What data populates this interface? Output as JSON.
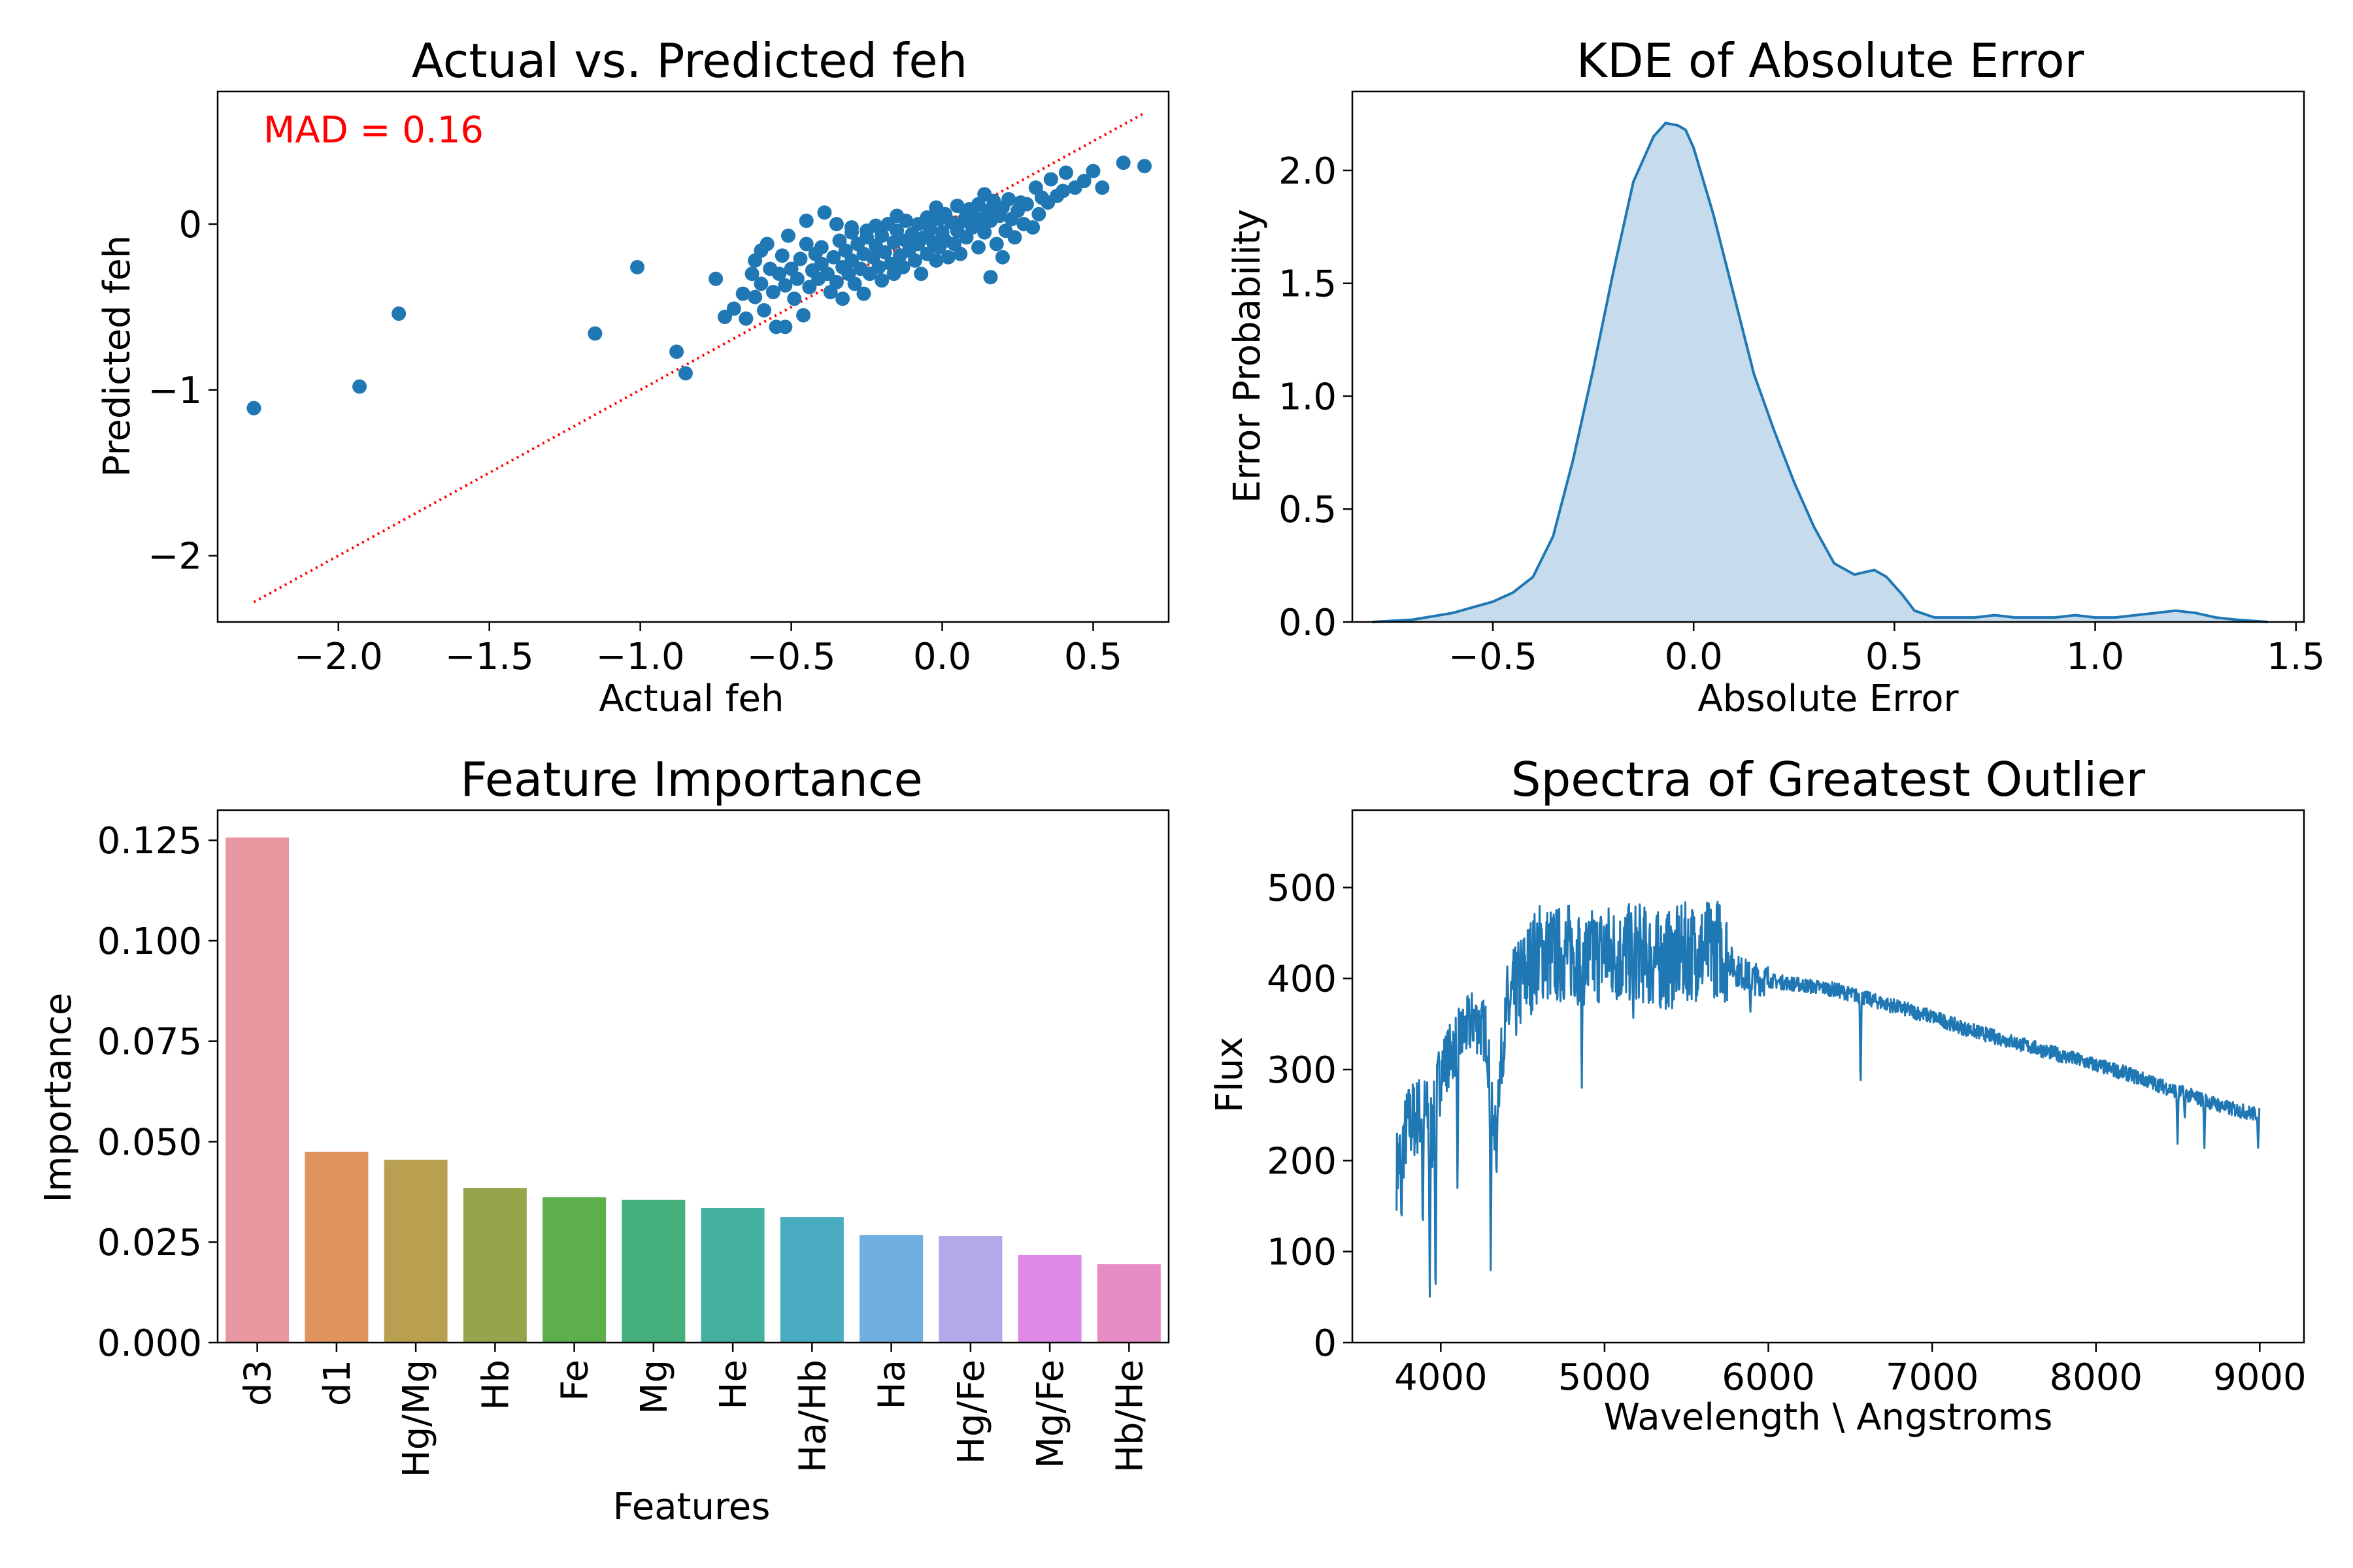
{
  "figure": {
    "panels": [
      {
        "id": "scatter",
        "title": "Actual vs. Predicted feh",
        "xlabel": "Actual feh",
        "ylabel": "Predicted feh",
        "annotation": {
          "text": "MAD = 0.16",
          "color": "#ff0000"
        }
      },
      {
        "id": "kde",
        "title": "KDE of Absolute Error",
        "xlabel": "Absolute Error",
        "ylabel": "Error Probability"
      },
      {
        "id": "bars",
        "title": "Feature Importance",
        "xlabel": "Features",
        "ylabel": "Importance"
      },
      {
        "id": "spectrum",
        "title": "Spectra of Greatest Outlier",
        "xlabel": "Wavelength \\ Angstroms",
        "ylabel": "Flux"
      }
    ]
  },
  "chart_data": [
    {
      "type": "scatter",
      "title": "Actual vs. Predicted feh",
      "xlabel": "Actual feh",
      "ylabel": "Predicted feh",
      "xlim": [
        -2.4,
        0.75
      ],
      "ylim": [
        -2.4,
        0.8
      ],
      "xticks": [
        -2.0,
        -1.5,
        -1.0,
        -0.5,
        0.0,
        0.5
      ],
      "xtick_labels": [
        "−2.0",
        "−1.5",
        "−1.0",
        "−0.5",
        "0.0",
        "0.5"
      ],
      "yticks": [
        -2,
        -1,
        0
      ],
      "ytick_labels": [
        "−2",
        "−1",
        "0"
      ],
      "point_color": "#1f77b4",
      "reference_line": {
        "x": [
          -2.28,
          0.67
        ],
        "y": [
          -2.28,
          0.67
        ],
        "color": "#ff0000",
        "style": "dotted"
      },
      "points": [
        [
          -2.28,
          -1.11
        ],
        [
          -1.93,
          -0.98
        ],
        [
          -1.8,
          -0.54
        ],
        [
          -1.15,
          -0.66
        ],
        [
          -1.01,
          -0.26
        ],
        [
          -0.88,
          -0.77
        ],
        [
          -0.85,
          -0.9
        ],
        [
          -0.75,
          -0.33
        ],
        [
          -0.72,
          -0.56
        ],
        [
          -0.69,
          -0.51
        ],
        [
          -0.66,
          -0.42
        ],
        [
          -0.65,
          -0.57
        ],
        [
          -0.63,
          -0.3
        ],
        [
          -0.62,
          -0.44
        ],
        [
          -0.6,
          -0.16
        ],
        [
          -0.6,
          -0.36
        ],
        [
          -0.59,
          -0.52
        ],
        [
          -0.58,
          -0.12
        ],
        [
          -0.57,
          -0.27
        ],
        [
          -0.56,
          -0.41
        ],
        [
          -0.55,
          -0.62
        ],
        [
          -0.54,
          -0.3
        ],
        [
          -0.53,
          -0.19
        ],
        [
          -0.52,
          -0.37
        ],
        [
          -0.52,
          -0.62
        ],
        [
          -0.51,
          -0.07
        ],
        [
          -0.5,
          -0.27
        ],
        [
          -0.49,
          -0.45
        ],
        [
          -0.48,
          -0.33
        ],
        [
          -0.47,
          -0.21
        ],
        [
          -0.46,
          -0.55
        ],
        [
          -0.45,
          -0.12
        ],
        [
          -0.44,
          -0.38
        ],
        [
          -0.43,
          -0.28
        ],
        [
          -0.42,
          -0.18
        ],
        [
          -0.41,
          -0.33
        ],
        [
          -0.4,
          -0.24
        ],
        [
          -0.4,
          -0.14
        ],
        [
          -0.39,
          0.07
        ],
        [
          -0.38,
          -0.3
        ],
        [
          -0.37,
          -0.41
        ],
        [
          -0.36,
          -0.2
        ],
        [
          -0.35,
          -0.35
        ],
        [
          -0.34,
          -0.1
        ],
        [
          -0.33,
          -0.26
        ],
        [
          -0.33,
          -0.45
        ],
        [
          -0.32,
          -0.16
        ],
        [
          -0.31,
          -0.3
        ],
        [
          -0.3,
          -0.05
        ],
        [
          -0.3,
          -0.22
        ],
        [
          -0.29,
          -0.36
        ],
        [
          -0.28,
          -0.12
        ],
        [
          -0.27,
          -0.27
        ],
        [
          -0.26,
          -0.18
        ],
        [
          -0.26,
          -0.42
        ],
        [
          -0.25,
          -0.08
        ],
        [
          -0.24,
          -0.3
        ],
        [
          -0.23,
          -0.2
        ],
        [
          -0.22,
          -0.01
        ],
        [
          -0.22,
          -0.13
        ],
        [
          -0.21,
          -0.26
        ],
        [
          -0.2,
          -0.34
        ],
        [
          -0.2,
          -0.07
        ],
        [
          -0.19,
          -0.17
        ],
        [
          -0.18,
          0.0
        ],
        [
          -0.17,
          -0.24
        ],
        [
          -0.16,
          -0.11
        ],
        [
          -0.16,
          -0.3
        ],
        [
          -0.15,
          -0.04
        ],
        [
          -0.14,
          -0.19
        ],
        [
          -0.13,
          -0.26
        ],
        [
          -0.12,
          0.02
        ],
        [
          -0.12,
          -0.1
        ],
        [
          -0.11,
          -0.16
        ],
        [
          -0.1,
          -0.06
        ],
        [
          -0.09,
          -0.22
        ],
        [
          -0.08,
          0.0
        ],
        [
          -0.08,
          -0.12
        ],
        [
          -0.07,
          -0.3
        ],
        [
          -0.06,
          -0.08
        ],
        [
          -0.05,
          0.04
        ],
        [
          -0.05,
          -0.18
        ],
        [
          -0.04,
          -0.03
        ],
        [
          -0.03,
          -0.11
        ],
        [
          -0.02,
          -0.22
        ],
        [
          -0.01,
          0.03
        ],
        [
          -0.01,
          -0.14
        ],
        [
          0.0,
          -0.05
        ],
        [
          0.01,
          0.06
        ],
        [
          0.01,
          -0.1
        ],
        [
          0.02,
          -0.2
        ],
        [
          0.03,
          0.01
        ],
        [
          0.04,
          -0.12
        ],
        [
          0.05,
          -0.04
        ],
        [
          0.05,
          0.11
        ],
        [
          0.06,
          -0.18
        ],
        [
          0.07,
          0.02
        ],
        [
          0.08,
          -0.08
        ],
        [
          0.09,
          0.09
        ],
        [
          0.1,
          -0.02
        ],
        [
          0.11,
          0.04
        ],
        [
          0.12,
          -0.14
        ],
        [
          0.12,
          0.12
        ],
        [
          0.13,
          0.01
        ],
        [
          0.14,
          -0.05
        ],
        [
          0.15,
          0.08
        ],
        [
          0.16,
          -0.32
        ],
        [
          0.16,
          0.02
        ],
        [
          0.17,
          0.14
        ],
        [
          0.18,
          -0.12
        ],
        [
          0.19,
          0.05
        ],
        [
          0.2,
          -0.2
        ],
        [
          0.2,
          0.1
        ],
        [
          0.21,
          -0.04
        ],
        [
          0.22,
          0.15
        ],
        [
          0.23,
          0.03
        ],
        [
          0.24,
          -0.08
        ],
        [
          0.25,
          0.08
        ],
        [
          0.27,
          0.0
        ],
        [
          0.28,
          0.12
        ],
        [
          0.3,
          -0.02
        ],
        [
          0.31,
          0.22
        ],
        [
          0.32,
          0.06
        ],
        [
          0.33,
          0.16
        ],
        [
          0.35,
          0.13
        ],
        [
          0.36,
          0.27
        ],
        [
          0.38,
          0.17
        ],
        [
          0.4,
          0.2
        ],
        [
          0.41,
          0.31
        ],
        [
          0.44,
          0.22
        ],
        [
          0.47,
          0.26
        ],
        [
          0.5,
          0.32
        ],
        [
          0.53,
          0.22
        ],
        [
          0.6,
          0.37
        ],
        [
          0.67,
          0.35
        ],
        [
          -0.35,
          0.0
        ],
        [
          -0.45,
          0.02
        ],
        [
          -0.15,
          0.05
        ],
        [
          0.08,
          0.06
        ],
        [
          -0.25,
          -0.04
        ],
        [
          0.18,
          0.07
        ],
        [
          -0.02,
          0.1
        ],
        [
          0.26,
          0.13
        ],
        [
          -0.62,
          -0.22
        ],
        [
          0.14,
          0.18
        ],
        [
          -0.3,
          -0.02
        ]
      ]
    },
    {
      "type": "area",
      "title": "KDE of Absolute Error",
      "xlabel": "Absolute Error",
      "ylabel": "Error Probability",
      "xlim": [
        -0.85,
        1.52
      ],
      "ylim": [
        0.0,
        2.35
      ],
      "xticks": [
        -0.5,
        0.0,
        0.5,
        1.0,
        1.5
      ],
      "xtick_labels": [
        "−0.5",
        "0.0",
        "0.5",
        "1.0",
        "1.5"
      ],
      "yticks": [
        0.0,
        0.5,
        1.0,
        1.5,
        2.0
      ],
      "ytick_labels": [
        "0.0",
        "0.5",
        "1.0",
        "1.5",
        "2.0"
      ],
      "line_color": "#1f77b4",
      "fill_color": "#c6dcec",
      "x": [
        -0.8,
        -0.7,
        -0.6,
        -0.5,
        -0.45,
        -0.4,
        -0.35,
        -0.3,
        -0.25,
        -0.2,
        -0.15,
        -0.1,
        -0.07,
        -0.04,
        -0.02,
        0.0,
        0.02,
        0.05,
        0.1,
        0.15,
        0.2,
        0.25,
        0.3,
        0.35,
        0.4,
        0.45,
        0.48,
        0.52,
        0.55,
        0.6,
        0.65,
        0.7,
        0.75,
        0.8,
        0.85,
        0.9,
        0.95,
        1.0,
        1.05,
        1.1,
        1.15,
        1.2,
        1.25,
        1.3,
        1.35,
        1.43
      ],
      "y": [
        0.0,
        0.01,
        0.04,
        0.09,
        0.13,
        0.2,
        0.38,
        0.72,
        1.12,
        1.55,
        1.95,
        2.15,
        2.21,
        2.2,
        2.18,
        2.1,
        1.98,
        1.8,
        1.45,
        1.1,
        0.85,
        0.62,
        0.42,
        0.26,
        0.21,
        0.23,
        0.2,
        0.12,
        0.05,
        0.02,
        0.02,
        0.02,
        0.03,
        0.02,
        0.02,
        0.02,
        0.03,
        0.02,
        0.02,
        0.03,
        0.04,
        0.05,
        0.04,
        0.02,
        0.01,
        0.0
      ]
    },
    {
      "type": "bar",
      "title": "Feature Importance",
      "xlabel": "Features",
      "ylabel": "Importance",
      "ylim": [
        0.0,
        0.1325
      ],
      "yticks": [
        0.0,
        0.025,
        0.05,
        0.075,
        0.1,
        0.125
      ],
      "ytick_labels": [
        "0.000",
        "0.025",
        "0.050",
        "0.075",
        "0.100",
        "0.125"
      ],
      "categories": [
        "d3",
        "d1",
        "Hg/Mg",
        "Hb",
        "Fe",
        "Mg",
        "He",
        "Ha/Hb",
        "Ha",
        "Hg/Fe",
        "Mg/Fe",
        "Hb/He"
      ],
      "values": [
        0.1257,
        0.0475,
        0.0455,
        0.0385,
        0.0362,
        0.0355,
        0.0335,
        0.0312,
        0.0268,
        0.0265,
        0.0218,
        0.0195
      ],
      "colors": [
        "#e8969f",
        "#e0935d",
        "#b9a050",
        "#98a44c",
        "#5daf4b",
        "#45b07b",
        "#44b0a0",
        "#49acc0",
        "#71aee0",
        "#b4a8ea",
        "#e08ae8",
        "#e68dc4"
      ]
    },
    {
      "type": "line",
      "title": "Spectra of Greatest Outlier",
      "xlabel": "Wavelength \\ Angstroms",
      "ylabel": "Flux",
      "xlim": [
        3460,
        9270
      ],
      "ylim": [
        0,
        585
      ],
      "xticks": [
        4000,
        5000,
        6000,
        7000,
        8000,
        9000
      ],
      "xtick_labels": [
        "4000",
        "5000",
        "6000",
        "7000",
        "8000",
        "9000"
      ],
      "yticks": [
        0,
        100,
        200,
        300,
        400,
        500
      ],
      "ytick_labels": [
        "0",
        "100",
        "200",
        "300",
        "400",
        "500"
      ],
      "line_color": "#1f77b4",
      "wavelength_range": [
        3730,
        9000
      ],
      "envelope_x": [
        3730,
        3800,
        3900,
        3950,
        4000,
        4100,
        4200,
        4280,
        4320,
        4400,
        4500,
        4600,
        4700,
        4800,
        4900,
        5000,
        5100,
        5200,
        5300,
        5400,
        5500,
        5600,
        5700,
        5750,
        5800,
        5900,
        6000,
        6200,
        6400,
        6600,
        6800,
        7000,
        7200,
        7400,
        7600,
        7800,
        8000,
        8200,
        8400,
        8600,
        8800,
        9000
      ],
      "envelope_y": [
        190,
        240,
        255,
        230,
        300,
        330,
        355,
        340,
        230,
        360,
        400,
        430,
        425,
        430,
        420,
        430,
        425,
        430,
        420,
        420,
        430,
        430,
        435,
        425,
        410,
        400,
        398,
        393,
        388,
        378,
        368,
        358,
        345,
        335,
        325,
        315,
        305,
        295,
        282,
        270,
        258,
        250
      ],
      "absorption_lines": [
        {
          "x": 3760,
          "y": 125
        },
        {
          "x": 3890,
          "y": 110
        },
        {
          "x": 3933,
          "y": 45
        },
        {
          "x": 3968,
          "y": 25
        },
        {
          "x": 4102,
          "y": 165
        },
        {
          "x": 4305,
          "y": 68
        },
        {
          "x": 4340,
          "y": 175
        },
        {
          "x": 4861,
          "y": 280
        },
        {
          "x": 5175,
          "y": 350
        },
        {
          "x": 5890,
          "y": 360
        },
        {
          "x": 6563,
          "y": 273
        },
        {
          "x": 8498,
          "y": 215
        },
        {
          "x": 8542,
          "y": 245
        },
        {
          "x": 8662,
          "y": 212
        },
        {
          "x": 8990,
          "y": 213
        }
      ]
    }
  ]
}
